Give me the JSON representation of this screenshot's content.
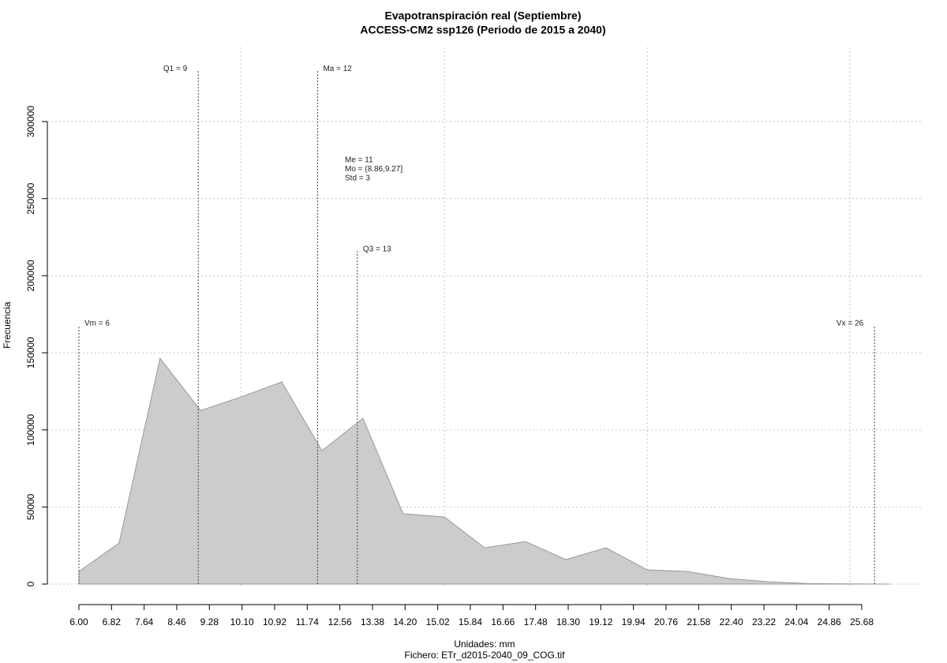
{
  "chart_data": {
    "type": "area",
    "title": "Evapotranspiración real (Septiembre)",
    "subtitle": "ACCESS-CM2 ssp126 (Periodo de 2015 a 2040)",
    "x_label": "Unidades: mm",
    "y_label": "Frecuencia",
    "footer": "Fichero: ETr_d2015-2040_09_COG.tif",
    "x": [
      6.0,
      7.01,
      8.04,
      9.06,
      10.07,
      11.1,
      12.11,
      13.14,
      14.15,
      15.19,
      16.2,
      17.23,
      18.24,
      19.25,
      20.29,
      21.3,
      22.33,
      23.34,
      24.35,
      25.38,
      26.4
    ],
    "values": [
      8200,
      26600,
      146400,
      112600,
      121300,
      131100,
      86500,
      107500,
      45600,
      43500,
      23500,
      27600,
      15900,
      23500,
      9200,
      8200,
      3600,
      1500,
      300,
      100,
      0
    ],
    "color": "#cccccc",
    "line_color": "#999999",
    "xlim": [
      6.0,
      25.68
    ],
    "xticks": [
      {
        "value": 6.0,
        "label": "6.00"
      },
      6.82,
      7.64,
      8.46,
      9.28,
      {
        "value": 10.1,
        "label": "10.10"
      },
      10.92,
      11.74,
      12.56,
      13.38,
      {
        "value": 14.2,
        "label": "14.20"
      },
      15.02,
      15.84,
      16.66,
      17.48,
      {
        "value": 18.3,
        "label": "18.30"
      },
      19.12,
      19.94,
      20.76,
      21.58,
      {
        "value": 22.4,
        "label": "22.40"
      },
      23.22,
      24.04,
      24.86,
      25.68
    ],
    "xgrid": [
      10.07,
      15.19,
      20.29,
      25.38
    ],
    "ylim": [
      0,
      300000
    ],
    "yticks": [
      0,
      50000,
      100000,
      150000,
      200000,
      250000,
      300000
    ],
    "grid": true,
    "annotations": [
      {
        "label": "Vm = 6",
        "x": 6,
        "y": 168000
      },
      {
        "label": "Q1 = 9",
        "x": 9,
        "y": 333000
      },
      {
        "label": "Ma = 12",
        "x": 12,
        "y": 333000
      },
      {
        "label": "Q3 = 13",
        "x": 13,
        "y": 216000
      },
      {
        "label": "Vx = 26",
        "x": 26,
        "y": 168000
      }
    ],
    "stats": [
      "Me = 11",
      "Mo = (8.86,9.27]",
      "Std = 3"
    ]
  }
}
